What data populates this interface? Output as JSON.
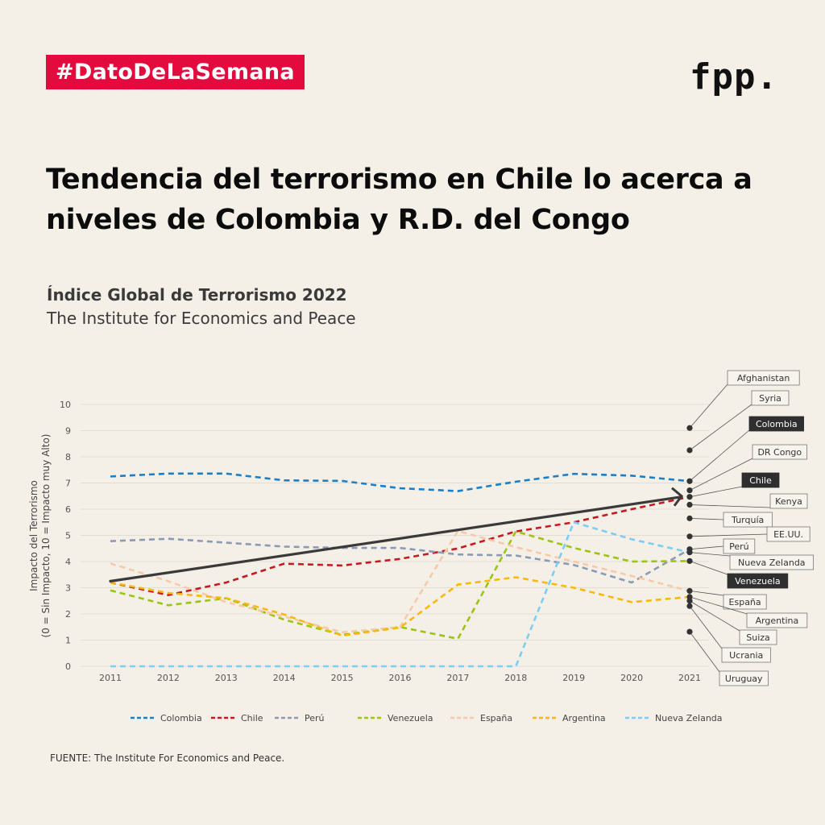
{
  "header": {
    "badge": "#DatoDeLaSemana",
    "logo": "fpp."
  },
  "title": "Tendencia del terrorismo en Chile lo acerca a niveles de Colombia y R.D. del Congo",
  "subtitle": "Índice Global de Terrorismo 2022",
  "publisher": "The Institute for Economics and Peace",
  "source": "FUENTE: The Institute For Economics and Peace.",
  "chart_data": {
    "type": "line",
    "ylabel_line1": "Impacto del Terrorismo",
    "ylabel_line2": "(0 = Sin Impacto, 10 = Impacto muy Alto)",
    "ylim": [
      0,
      10
    ],
    "yticks": [
      "0",
      "1",
      "2",
      "3",
      "4",
      "5",
      "6",
      "7",
      "8",
      "9",
      "10"
    ],
    "x": [
      "2011",
      "2012",
      "2013",
      "2014",
      "2015",
      "2016",
      "2017",
      "2018",
      "2019",
      "2020",
      "2021"
    ],
    "grid": true,
    "legend_position": "bottom",
    "series": [
      {
        "name": "Colombia",
        "color": "#1a7fc7",
        "values": [
          7.25,
          7.36,
          7.36,
          7.1,
          7.08,
          6.8,
          6.69,
          7.05,
          7.35,
          7.28,
          7.07
        ]
      },
      {
        "name": "Chile",
        "color": "#c8191f",
        "values": [
          3.2,
          2.72,
          3.2,
          3.92,
          3.85,
          4.1,
          4.5,
          5.15,
          5.5,
          6.0,
          6.47
        ]
      },
      {
        "name": "Perú",
        "color": "#8a9ab3",
        "values": [
          4.78,
          4.87,
          4.72,
          4.57,
          4.52,
          4.52,
          4.27,
          4.23,
          3.87,
          3.2,
          4.47
        ]
      },
      {
        "name": "Venezuela",
        "color": "#9cc412",
        "values": [
          2.9,
          2.33,
          2.6,
          1.78,
          1.2,
          1.5,
          1.05,
          5.15,
          4.52,
          4.0,
          4.02
        ]
      },
      {
        "name": "España",
        "color": "#f7c9a8",
        "values": [
          3.93,
          3.25,
          2.45,
          1.9,
          1.3,
          1.5,
          5.17,
          4.55,
          4.0,
          3.45,
          2.88
        ]
      },
      {
        "name": "Argentina",
        "color": "#f8b90a",
        "values": [
          3.2,
          2.8,
          2.6,
          1.98,
          1.17,
          1.48,
          3.12,
          3.4,
          3.0,
          2.45,
          2.65
        ]
      },
      {
        "name": "Nueva Zelanda",
        "color": "#7ccdf4",
        "values": [
          0,
          0,
          0,
          0,
          0,
          0,
          0,
          0,
          5.5,
          4.85,
          4.35
        ]
      }
    ],
    "trend": {
      "from": [
        2011,
        3.25
      ],
      "to": [
        2021,
        6.47
      ],
      "color": "#3a3a3a"
    },
    "annotations_2021": [
      {
        "label": "Afghanistan",
        "value": 9.1,
        "highlight": false
      },
      {
        "label": "Syria",
        "value": 8.25,
        "highlight": false
      },
      {
        "label": "Colombia",
        "value": 7.07,
        "highlight": true
      },
      {
        "label": "DR Congo",
        "value": 6.72,
        "highlight": false
      },
      {
        "label": "Chile",
        "value": 6.47,
        "highlight": true
      },
      {
        "label": "Kenya",
        "value": 6.17,
        "highlight": false
      },
      {
        "label": "Turquía",
        "value": 5.65,
        "highlight": false
      },
      {
        "label": "EE.UU.",
        "value": 4.96,
        "highlight": false
      },
      {
        "label": "Perú",
        "value": 4.47,
        "highlight": false
      },
      {
        "label": "Nueva Zelanda",
        "value": 4.35,
        "highlight": false
      },
      {
        "label": "Venezuela",
        "value": 4.02,
        "highlight": true
      },
      {
        "label": "España",
        "value": 2.88,
        "highlight": false
      },
      {
        "label": "Argentina",
        "value": 2.65,
        "highlight": false
      },
      {
        "label": "Suiza",
        "value": 2.5,
        "highlight": false
      },
      {
        "label": "Ucrania",
        "value": 2.3,
        "highlight": false
      },
      {
        "label": "Uruguay",
        "value": 1.32,
        "highlight": false
      }
    ]
  }
}
